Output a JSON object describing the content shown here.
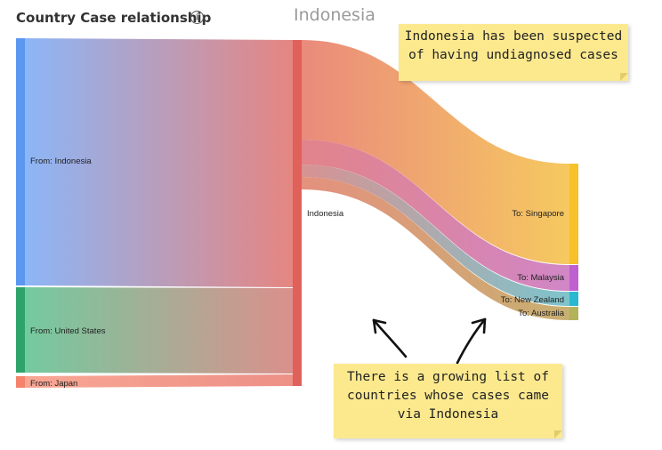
{
  "header": {
    "title": "Country Case relationship",
    "info_icon": "info-icon",
    "center_title": "Indonesia"
  },
  "sankey": {
    "nodes": [
      {
        "id": "from-indonesia",
        "label": "From: Indonesia",
        "color": "#5b97f0"
      },
      {
        "id": "from-us",
        "label": "From: United States",
        "color": "#2ea36a"
      },
      {
        "id": "from-japan",
        "label": "From: Japan",
        "color": "#f5826a"
      },
      {
        "id": "hub",
        "label": "Indonesia",
        "color": "#e0605a"
      },
      {
        "id": "to-singapore",
        "label": "To: Singapore",
        "color": "#f7c12c"
      },
      {
        "id": "to-malaysia",
        "label": "To: Malaysia",
        "color": "#c05fcf"
      },
      {
        "id": "to-nz",
        "label": "To: New Zealand",
        "color": "#2ab7d0"
      },
      {
        "id": "to-australia",
        "label": "To: Australia",
        "color": "#b3b35a"
      }
    ]
  },
  "notes": {
    "top": [
      "Indonesia has been suspected",
      "of having undiagnosed cases"
    ],
    "bottom": [
      "There is a growing list of",
      "countries whose cases came",
      "via Indonesia"
    ]
  }
}
